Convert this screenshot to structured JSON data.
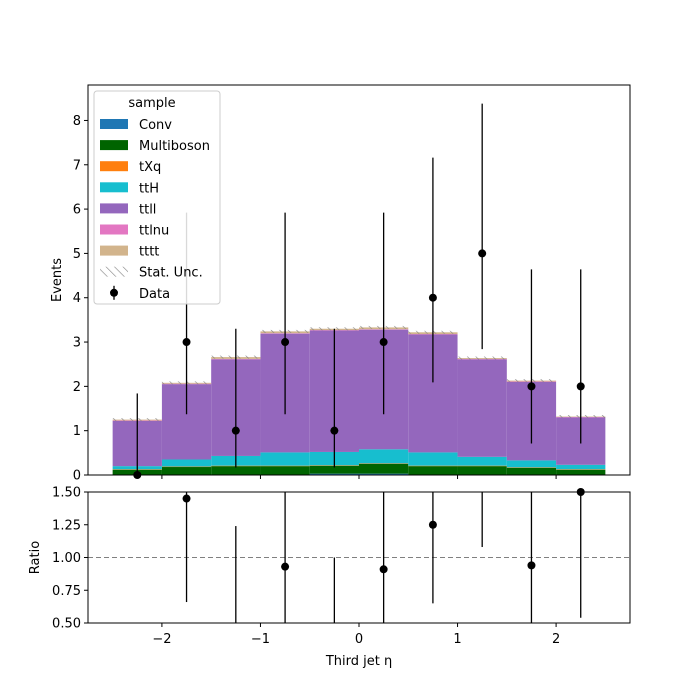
{
  "chart_data": [
    {
      "type": "bar",
      "stacked": true,
      "ylabel": "Events",
      "xlim": [
        -2.75,
        2.75
      ],
      "ylim": [
        0,
        8.8
      ],
      "xticks": [
        -2,
        -1,
        0,
        1,
        2
      ],
      "yticks": [
        0,
        1,
        2,
        3,
        4,
        5,
        6,
        7,
        8
      ],
      "bin_edges": [
        -2.5,
        -2.0,
        -1.5,
        -1.0,
        -0.5,
        0.0,
        0.5,
        1.0,
        1.5,
        2.0,
        2.5
      ],
      "series": [
        {
          "name": "Conv",
          "color": "#1f77b4",
          "values": [
            0,
            0,
            0,
            0,
            0.03,
            0.03,
            0,
            0,
            0,
            0
          ]
        },
        {
          "name": "Multiboson",
          "color": "#006400",
          "values": [
            0.12,
            0.18,
            0.2,
            0.2,
            0.18,
            0.22,
            0.2,
            0.2,
            0.16,
            0.12
          ]
        },
        {
          "name": "tXq",
          "color": "#ff7f0e",
          "values": [
            0.01,
            0.01,
            0.01,
            0.01,
            0.01,
            0.01,
            0.01,
            0.01,
            0.01,
            0.01
          ]
        },
        {
          "name": "ttH",
          "color": "#17becf",
          "values": [
            0.07,
            0.16,
            0.22,
            0.3,
            0.3,
            0.32,
            0.3,
            0.2,
            0.16,
            0.1
          ]
        },
        {
          "name": "ttll",
          "color": "#9467bd",
          "values": [
            1.02,
            1.7,
            2.18,
            2.68,
            2.74,
            2.7,
            2.66,
            2.2,
            1.77,
            1.07
          ]
        },
        {
          "name": "ttlnu",
          "color": "#e377c2",
          "values": [
            0.01,
            0.01,
            0.01,
            0.01,
            0.01,
            0.01,
            0.01,
            0.01,
            0.01,
            0.01
          ]
        },
        {
          "name": "tttt",
          "color": "#d2b48c",
          "values": [
            0.02,
            0.02,
            0.04,
            0.04,
            0.03,
            0.04,
            0.04,
            0.02,
            0.02,
            0.01
          ]
        }
      ],
      "data": {
        "name": "Data",
        "x": [
          -2.25,
          -1.75,
          -1.25,
          -0.75,
          -0.25,
          0.25,
          0.75,
          1.25,
          1.75,
          2.25
        ],
        "y": [
          0,
          3,
          1,
          3,
          1,
          3,
          4,
          5,
          2,
          2
        ],
        "yerr_low": [
          0,
          1.63,
          0.83,
          1.63,
          0.83,
          1.63,
          1.91,
          2.16,
          1.29,
          1.29
        ],
        "yerr_high": [
          1.84,
          2.92,
          2.3,
          2.92,
          2.3,
          2.92,
          3.16,
          3.38,
          2.64,
          2.64
        ]
      },
      "stat_unc_label": "Stat. Unc.",
      "legend": {
        "title": "sample",
        "placement": "top-left"
      }
    },
    {
      "type": "scatter",
      "ylabel": "Ratio",
      "xlabel": "Third jet  η",
      "xlim": [
        -2.75,
        2.75
      ],
      "ylim": [
        0.5,
        1.5
      ],
      "yticks": [
        "0.50",
        "0.75",
        "1.00",
        "1.25",
        "1.50"
      ],
      "xtick_labels": [
        "−2",
        "−1",
        "0",
        "1",
        "2"
      ],
      "reference_line": 1.0,
      "x": [
        -1.75,
        -0.75,
        0.25,
        0.75,
        1.75,
        2.25
      ],
      "y": [
        1.45,
        0.93,
        0.91,
        1.25,
        0.94,
        1.5
      ],
      "err_bars": [
        {
          "x": -1.75,
          "low": 0.66,
          "high": 1.5
        },
        {
          "x": -1.25,
          "low": 0.5,
          "high": 1.24
        },
        {
          "x": -0.75,
          "low": 0.5,
          "high": 1.5
        },
        {
          "x": -0.25,
          "low": 0.5,
          "high": 1.0
        },
        {
          "x": 0.25,
          "low": 0.5,
          "high": 1.5
        },
        {
          "x": 0.75,
          "low": 0.65,
          "high": 1.5
        },
        {
          "x": 1.25,
          "low": 1.08,
          "high": 1.5
        },
        {
          "x": 1.75,
          "low": 0.5,
          "high": 1.5
        },
        {
          "x": 2.25,
          "low": 0.54,
          "high": 1.5
        }
      ]
    }
  ]
}
